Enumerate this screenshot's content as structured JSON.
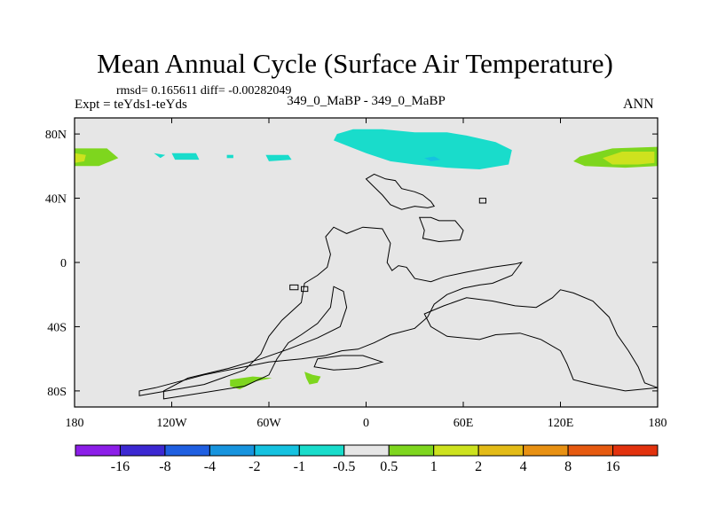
{
  "chart_data": {
    "type": "heatmap",
    "title": "Mean Annual Cycle (Surface Air Temperature)",
    "stats": "rmsd= 0.165611 diff= -0.00282049",
    "experiment": "Expt = teYds1-teYds",
    "case_label": "349_0_MaBP - 349_0_MaBP",
    "season": "ANN",
    "xlim": [
      -180,
      180
    ],
    "ylim": [
      -90,
      90
    ],
    "x_ticks": [
      {
        "value": -180,
        "label": "180"
      },
      {
        "value": -120,
        "label": "120W"
      },
      {
        "value": -60,
        "label": "60W"
      },
      {
        "value": 0,
        "label": "0"
      },
      {
        "value": 60,
        "label": "60E"
      },
      {
        "value": 120,
        "label": "120E"
      },
      {
        "value": 180,
        "label": "180"
      }
    ],
    "y_ticks": [
      {
        "value": 80,
        "label": "80N"
      },
      {
        "value": 40,
        "label": "40N"
      },
      {
        "value": 0,
        "label": "0"
      },
      {
        "value": -40,
        "label": "40S"
      },
      {
        "value": -80,
        "label": "80S"
      }
    ],
    "background_level": "-0.5 to 0.5",
    "colorbar": {
      "colors": [
        "#8c1ee8",
        "#3c28d2",
        "#1f5fe1",
        "#1794de",
        "#15c2e0",
        "#19dccb",
        "#e6e6e6",
        "#7ed61e",
        "#cde21e",
        "#e3bb17",
        "#e89113",
        "#e65a10",
        "#e2320e"
      ],
      "labels": [
        "-16",
        "-8",
        "-4",
        "-2",
        "-1",
        "-0.5",
        "0.5",
        "1",
        "2",
        "4",
        "8",
        "16"
      ]
    },
    "regions": [
      {
        "name": "arctic-anomaly-pacific-west",
        "level": "0.5 to 1",
        "color": "#7ed61e",
        "points": [
          [
            -180,
            71
          ],
          [
            -160,
            71
          ],
          [
            -153,
            65
          ],
          [
            -165,
            60
          ],
          [
            -180,
            60
          ]
        ]
      },
      {
        "name": "arctic-anomaly-pacific-west-core",
        "level": "1 to 2",
        "color": "#cde21e",
        "points": [
          [
            -180,
            68
          ],
          [
            -173,
            67
          ],
          [
            -174,
            63
          ],
          [
            -180,
            62
          ]
        ]
      },
      {
        "name": "arctic-anomaly-pacific-east",
        "level": "0.5 to 1",
        "color": "#7ed61e",
        "points": [
          [
            180,
            72
          ],
          [
            152,
            71
          ],
          [
            132,
            66
          ],
          [
            128,
            63
          ],
          [
            135,
            60
          ],
          [
            160,
            59
          ],
          [
            180,
            60
          ]
        ]
      },
      {
        "name": "arctic-anomaly-pacific-east-core",
        "level": "1 to 2",
        "color": "#cde21e",
        "points": [
          [
            178,
            69
          ],
          [
            158,
            69
          ],
          [
            146,
            65
          ],
          [
            152,
            61
          ],
          [
            168,
            61
          ],
          [
            178,
            62
          ]
        ]
      },
      {
        "name": "arctic-anomaly-atlantic",
        "level": "-1 to -0.5",
        "color": "#19dccb",
        "points": [
          [
            -18,
            80
          ],
          [
            -8,
            83
          ],
          [
            10,
            83
          ],
          [
            30,
            81
          ],
          [
            50,
            81
          ],
          [
            62,
            79
          ],
          [
            80,
            75
          ],
          [
            90,
            70
          ],
          [
            88,
            61
          ],
          [
            70,
            58
          ],
          [
            50,
            59
          ],
          [
            30,
            61
          ],
          [
            15,
            63
          ],
          [
            0,
            68
          ],
          [
            -10,
            72
          ],
          [
            -20,
            76
          ]
        ]
      },
      {
        "name": "arctic-anomaly-atlantic-core",
        "level": "-2 to -1",
        "color": "#15c2e0",
        "points": [
          [
            36,
            65
          ],
          [
            42,
            66
          ],
          [
            46,
            64
          ],
          [
            40,
            63
          ]
        ]
      },
      {
        "name": "arctic-anomaly-siberia",
        "level": "-1 to -0.5",
        "color": "#19dccb",
        "points": [
          [
            -62,
            67
          ],
          [
            -48,
            67
          ],
          [
            -46,
            64
          ],
          [
            -60,
            63
          ]
        ]
      },
      {
        "name": "arctic-anomaly-strip-1",
        "level": "-1 to -0.5",
        "color": "#19dccb",
        "points": [
          [
            -120,
            68
          ],
          [
            -105,
            68
          ],
          [
            -103,
            64
          ],
          [
            -118,
            64
          ]
        ]
      },
      {
        "name": "arctic-anomaly-strip-2",
        "level": "-1 to -0.5",
        "color": "#19dccb",
        "points": [
          [
            -86,
            67
          ],
          [
            -82,
            67
          ],
          [
            -82,
            65
          ],
          [
            -86,
            65
          ]
        ]
      },
      {
        "name": "arctic-anomaly-strip-3",
        "level": "-1 to -0.5",
        "color": "#19dccb",
        "points": [
          [
            -131,
            68
          ],
          [
            -124,
            67
          ],
          [
            -127,
            65
          ]
        ]
      },
      {
        "name": "antarctic-anomaly-west",
        "level": "0.5 to 1",
        "color": "#7ed61e",
        "points": [
          [
            -84,
            -73
          ],
          [
            -70,
            -71
          ],
          [
            -58,
            -72
          ],
          [
            -68,
            -74
          ],
          [
            -78,
            -79
          ],
          [
            -84,
            -77
          ]
        ]
      },
      {
        "name": "antarctic-anomaly-east",
        "level": "0.5 to 1",
        "color": "#7ed61e",
        "points": [
          [
            -38,
            -68
          ],
          [
            -33,
            -70
          ],
          [
            -28,
            -71
          ],
          [
            -30,
            -75
          ],
          [
            -35,
            -76
          ],
          [
            -37,
            -72
          ]
        ]
      }
    ],
    "coastlines": [
      {
        "name": "coast-gondwana",
        "points": [
          [
            -140,
            -83
          ],
          [
            -100,
            -76
          ],
          [
            -75,
            -67
          ],
          [
            -65,
            -57
          ],
          [
            -60,
            -46
          ],
          [
            -52,
            -36
          ],
          [
            -40,
            -25
          ],
          [
            -38,
            -13
          ],
          [
            -30,
            -8
          ],
          [
            -24,
            -3
          ],
          [
            -22,
            5
          ],
          [
            -25,
            16
          ],
          [
            -20,
            22
          ],
          [
            -12,
            18
          ],
          [
            -2,
            22
          ],
          [
            10,
            21
          ],
          [
            15,
            12
          ],
          [
            13,
            0
          ],
          [
            16,
            -5
          ],
          [
            20,
            -2
          ],
          [
            25,
            -3
          ],
          [
            30,
            -10
          ],
          [
            40,
            -12
          ],
          [
            48,
            -9
          ],
          [
            62,
            -6
          ],
          [
            78,
            -3
          ],
          [
            92,
            -1
          ],
          [
            96,
            0
          ],
          [
            90,
            -8
          ],
          [
            78,
            -13
          ],
          [
            70,
            -14
          ],
          [
            60,
            -16
          ],
          [
            50,
            -20
          ],
          [
            42,
            -26
          ],
          [
            38,
            -34
          ],
          [
            30,
            -41
          ],
          [
            15,
            -45
          ],
          [
            5,
            -50
          ],
          [
            -5,
            -54
          ],
          [
            -15,
            -55
          ],
          [
            -25,
            -58
          ],
          [
            -40,
            -60
          ],
          [
            -60,
            -62
          ],
          [
            -80,
            -66
          ],
          [
            -100,
            -70
          ],
          [
            -130,
            -78
          ],
          [
            -140,
            -80
          ]
        ]
      },
      {
        "name": "coast-gondwana-inner",
        "points": [
          [
            -125,
            -85
          ],
          [
            -100,
            -81
          ],
          [
            -75,
            -77
          ],
          [
            -60,
            -70
          ],
          [
            -55,
            -60
          ],
          [
            -48,
            -50
          ],
          [
            -40,
            -45
          ],
          [
            -30,
            -38
          ],
          [
            -22,
            -28
          ],
          [
            -20,
            -15
          ],
          [
            -14,
            -18
          ],
          [
            -12,
            -28
          ],
          [
            -16,
            -40
          ],
          [
            -30,
            -47
          ],
          [
            -48,
            -54
          ],
          [
            -65,
            -60
          ],
          [
            -85,
            -66
          ],
          [
            -110,
            -72
          ],
          [
            -125,
            -80
          ]
        ]
      },
      {
        "name": "coast-gondwana-south",
        "points": [
          [
            -30,
            -60
          ],
          [
            -15,
            -58
          ],
          [
            -2,
            -58
          ],
          [
            10,
            -62
          ],
          [
            -5,
            -66
          ],
          [
            -20,
            -67
          ],
          [
            -32,
            -65
          ]
        ]
      },
      {
        "name": "coast-south-east",
        "points": [
          [
            120,
            -17
          ],
          [
            128,
            -19
          ],
          [
            140,
            -24
          ],
          [
            150,
            -34
          ],
          [
            155,
            -45
          ],
          [
            162,
            -55
          ],
          [
            168,
            -65
          ],
          [
            172,
            -75
          ],
          [
            180,
            -78
          ],
          [
            160,
            -80
          ],
          [
            140,
            -76
          ],
          [
            128,
            -73
          ],
          [
            124,
            -63
          ],
          [
            120,
            -55
          ],
          [
            108,
            -48
          ],
          [
            95,
            -44
          ],
          [
            80,
            -45
          ],
          [
            70,
            -48
          ],
          [
            50,
            -46
          ],
          [
            40,
            -40
          ],
          [
            36,
            -32
          ],
          [
            48,
            -27
          ],
          [
            62,
            -22
          ],
          [
            78,
            -24
          ],
          [
            92,
            -27
          ],
          [
            105,
            -28
          ],
          [
            115,
            -22
          ]
        ]
      },
      {
        "name": "coast-island-north",
        "points": [
          [
            0,
            52
          ],
          [
            5,
            55
          ],
          [
            12,
            52
          ],
          [
            18,
            51
          ],
          [
            22,
            46
          ],
          [
            30,
            44
          ],
          [
            35,
            42
          ],
          [
            40,
            38
          ],
          [
            42,
            35
          ],
          [
            38,
            34
          ],
          [
            30,
            35
          ],
          [
            22,
            33
          ],
          [
            15,
            36
          ],
          [
            10,
            42
          ],
          [
            5,
            47
          ]
        ]
      },
      {
        "name": "coast-island-ne",
        "points": [
          [
            33,
            28
          ],
          [
            40,
            28
          ],
          [
            45,
            26
          ],
          [
            55,
            26
          ],
          [
            60,
            20
          ],
          [
            58,
            14
          ],
          [
            45,
            13
          ],
          [
            35,
            15
          ],
          [
            36,
            20
          ]
        ]
      },
      {
        "name": "coast-island-small",
        "points": [
          [
            70,
            40
          ],
          [
            74,
            40
          ],
          [
            74,
            37
          ],
          [
            70,
            37
          ]
        ]
      },
      {
        "name": "coast-tiny-1",
        "points": [
          [
            -40,
            -15
          ],
          [
            -36,
            -15
          ],
          [
            -36,
            -18
          ],
          [
            -40,
            -18
          ]
        ]
      },
      {
        "name": "coast-tiny-2",
        "points": [
          [
            -47,
            -14
          ],
          [
            -42,
            -14
          ],
          [
            -42,
            -17
          ],
          [
            -47,
            -17
          ]
        ]
      }
    ]
  }
}
